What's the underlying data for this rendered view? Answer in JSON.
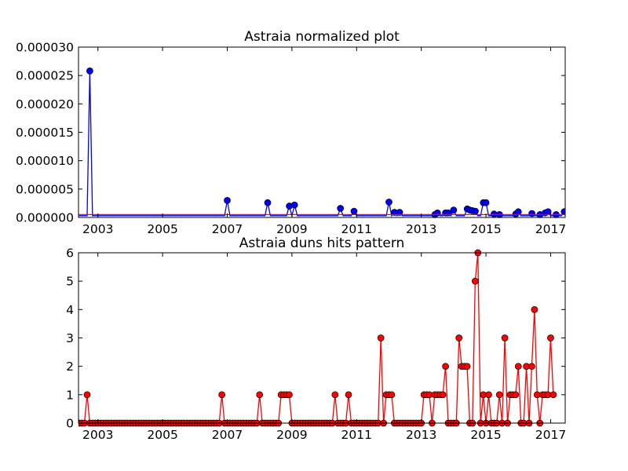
{
  "chart_data": [
    {
      "type": "line",
      "title": "Astraia normalized plot",
      "xlabel": "",
      "ylabel": "",
      "xlim": [
        2002.4,
        2017.45
      ],
      "ylim": [
        0,
        3e-05
      ],
      "xticks": [
        "2003",
        "2005",
        "2007",
        "2009",
        "2011",
        "2013",
        "2015",
        "2017"
      ],
      "yticks": [
        "0.000000",
        "0.000005",
        "0.000010",
        "0.000015",
        "0.000020",
        "0.000025",
        "0.000030"
      ],
      "grid": false,
      "series": [
        {
          "color": "#0000ff",
          "marker": "circle",
          "baseline": 3e-07,
          "points": [
            [
              2002.75,
              2.58e-05
            ],
            [
              2007.0,
              3e-06
            ],
            [
              2008.25,
              2.6e-06
            ],
            [
              2008.92,
              2e-06
            ],
            [
              2009.08,
              2.2e-06
            ],
            [
              2010.5,
              1.6e-06
            ],
            [
              2010.92,
              1.1e-06
            ],
            [
              2012.0,
              2.7e-06
            ],
            [
              2012.17,
              9e-07
            ],
            [
              2012.33,
              9e-07
            ],
            [
              2013.42,
              5e-07
            ],
            [
              2013.5,
              8e-07
            ],
            [
              2013.75,
              8e-07
            ],
            [
              2013.83,
              8e-07
            ],
            [
              2014.0,
              1.3e-06
            ],
            [
              2014.42,
              1.5e-06
            ],
            [
              2014.5,
              1.3e-06
            ],
            [
              2014.58,
              1.2e-06
            ],
            [
              2014.67,
              1.1e-06
            ],
            [
              2014.92,
              2.6e-06
            ],
            [
              2015.0,
              2.6e-06
            ],
            [
              2015.25,
              6e-07
            ],
            [
              2015.42,
              5e-07
            ],
            [
              2015.92,
              6e-07
            ],
            [
              2016.0,
              1e-06
            ],
            [
              2016.42,
              7e-07
            ],
            [
              2016.67,
              5e-07
            ],
            [
              2016.83,
              8e-07
            ],
            [
              2016.92,
              1e-06
            ],
            [
              2017.17,
              5e-07
            ],
            [
              2017.42,
              1e-06
            ]
          ]
        },
        {
          "color": "#ff0000",
          "marker": "none",
          "points": [
            [
              2002.4,
              5e-07
            ],
            [
              2017.45,
              5e-07
            ]
          ]
        }
      ]
    },
    {
      "type": "line",
      "title": "Astraia duns hits pattern",
      "xlabel": "",
      "ylabel": "",
      "xlim": [
        2002.4,
        2017.45
      ],
      "ylim": [
        0,
        6
      ],
      "xticks": [
        "2003",
        "2005",
        "2007",
        "2009",
        "2011",
        "2013",
        "2015",
        "2017"
      ],
      "yticks": [
        "0",
        "1",
        "2",
        "3",
        "4",
        "5",
        "6"
      ],
      "grid": false,
      "series": [
        {
          "color": "#ff0000",
          "marker": "circle",
          "frequency": "monthly",
          "start": "2002-06",
          "values": [
            0,
            0,
            0,
            1,
            0,
            0,
            0,
            0,
            0,
            0,
            0,
            0,
            0,
            0,
            0,
            0,
            0,
            0,
            0,
            0,
            0,
            0,
            0,
            0,
            0,
            0,
            0,
            0,
            0,
            0,
            0,
            0,
            0,
            0,
            0,
            0,
            0,
            0,
            0,
            0,
            0,
            0,
            0,
            0,
            0,
            0,
            0,
            0,
            0,
            0,
            0,
            0,
            0,
            1,
            0,
            0,
            0,
            0,
            0,
            0,
            0,
            0,
            0,
            0,
            0,
            0,
            0,
            1,
            0,
            0,
            0,
            0,
            0,
            0,
            0,
            1,
            1,
            1,
            1,
            0,
            0,
            0,
            0,
            0,
            0,
            0,
            0,
            0,
            0,
            0,
            0,
            0,
            0,
            0,
            0,
            1,
            0,
            0,
            0,
            0,
            1,
            0,
            0,
            0,
            0,
            0,
            0,
            0,
            0,
            0,
            0,
            0,
            3,
            0,
            1,
            1,
            1,
            0,
            0,
            0,
            0,
            0,
            0,
            0,
            0,
            0,
            0,
            0,
            1,
            1,
            1,
            0,
            1,
            1,
            1,
            1,
            2,
            0,
            0,
            0,
            0,
            3,
            2,
            2,
            2,
            0,
            0,
            5,
            6,
            0,
            1,
            0,
            1,
            0,
            0,
            0,
            1,
            0,
            3,
            0,
            1,
            1,
            1,
            2,
            0,
            0,
            2,
            0,
            2,
            4,
            1,
            0,
            1,
            1,
            1,
            3,
            1
          ]
        }
      ]
    }
  ]
}
